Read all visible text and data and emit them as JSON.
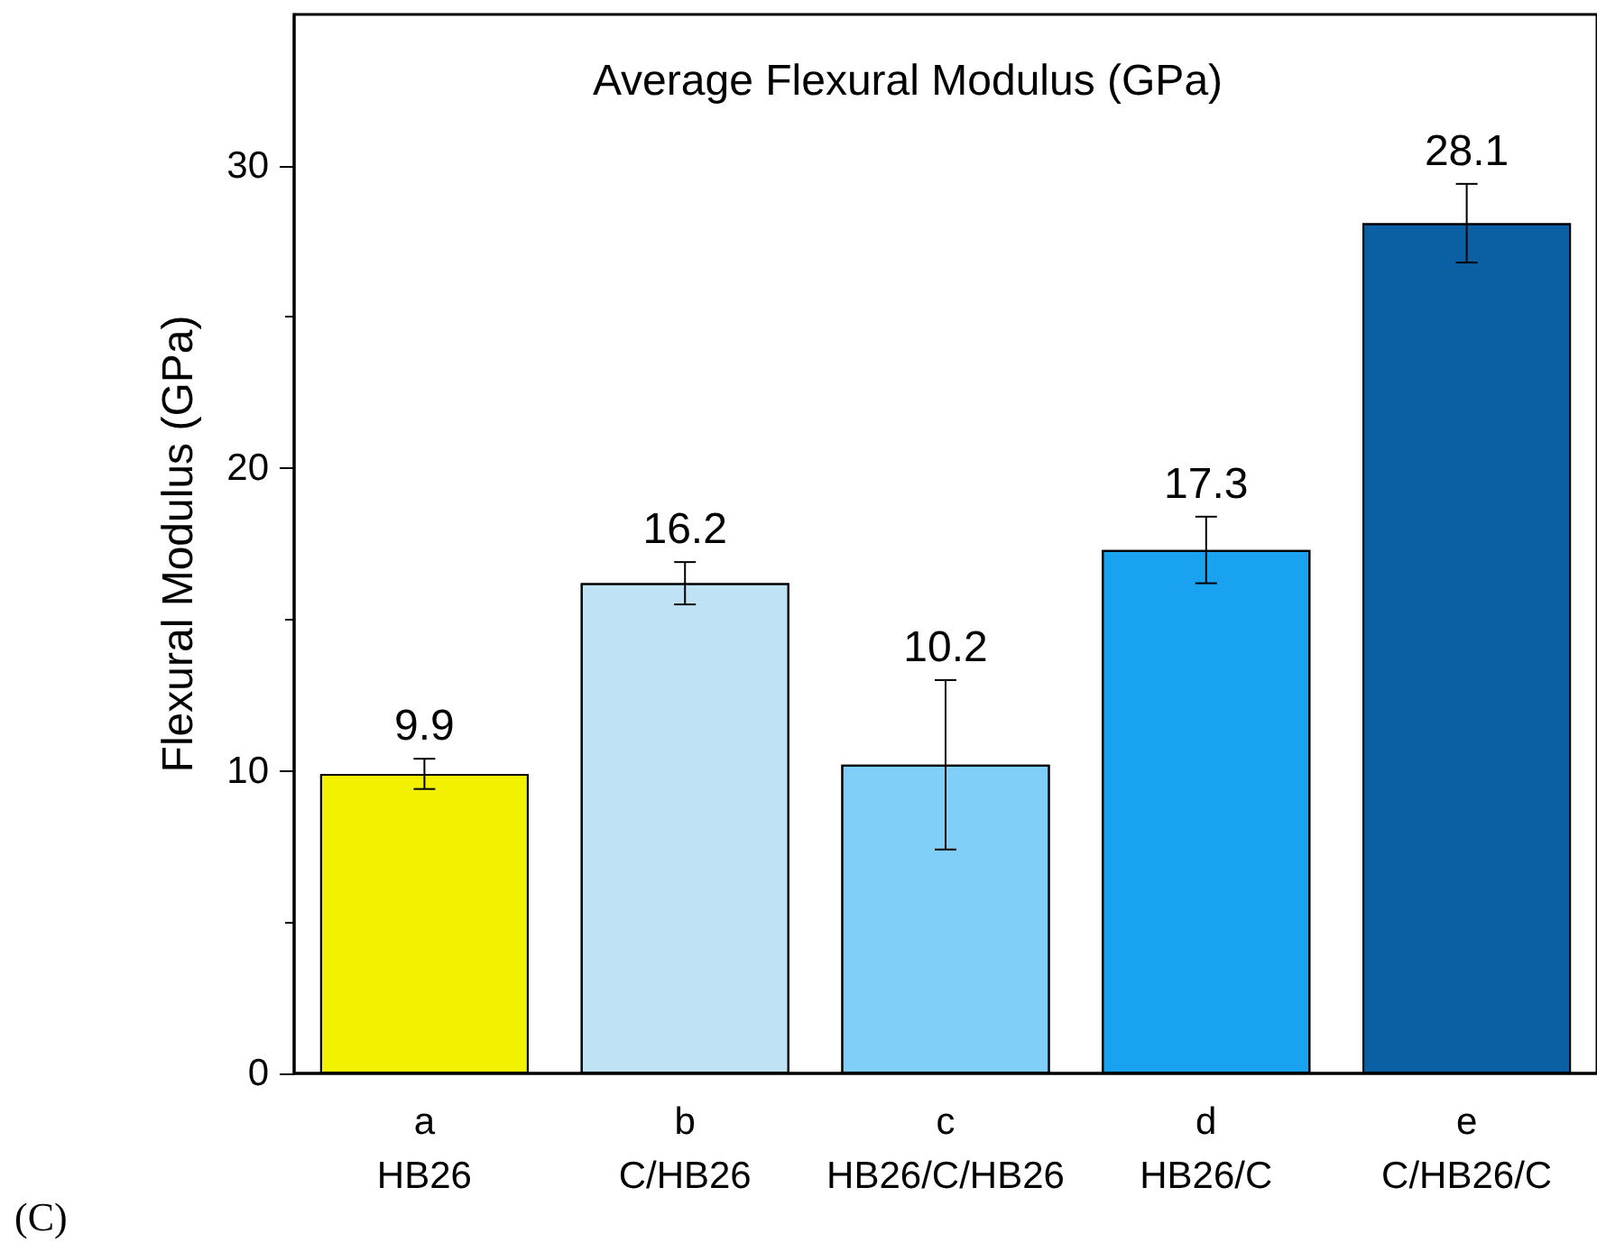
{
  "chart_data": {
    "type": "bar",
    "title": "Average Flexural Modulus (GPa)",
    "ylabel": "Flexural Modulus (GPa)",
    "categories": [
      "a\nHB26",
      "b\nC/HB26",
      "c\nHB26/C/HB26",
      "d\nHB26/C",
      "e\nC/HB26/C"
    ],
    "values": [
      9.9,
      16.2,
      10.2,
      17.3,
      28.1
    ],
    "colors": [
      "#f2f200",
      "#bfe3f5",
      "#80cff8",
      "#18a2f0",
      "#0a60a2"
    ],
    "errors": [
      0.5,
      0.7,
      2.8,
      1.1,
      1.3
    ],
    "data_labels": true,
    "ylim": [
      0,
      35
    ],
    "yticks": [
      0,
      10,
      20,
      30
    ],
    "grid": false,
    "annotations": [
      "(C)"
    ]
  }
}
